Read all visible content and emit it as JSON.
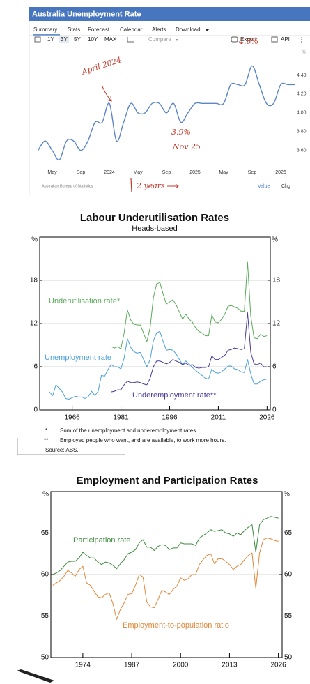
{
  "widget": {
    "tabs": [
      "Summary",
      "Stats",
      "Forecast",
      "Calendar",
      "Alerts",
      "Download"
    ],
    "ranges": [
      "1Y",
      "3Y",
      "5Y",
      "10Y",
      "MAX"
    ],
    "compare": "Compare",
    "actions": [
      "Export",
      "API"
    ],
    "footer": [
      "Value",
      "Chg"
    ]
  },
  "chart_data": [
    {
      "type": "line",
      "title": "Australia Unemployment Rate",
      "source": "Australian Bureau of Statistics",
      "ylabel": "%",
      "color": "#5b86c5",
      "grid": false,
      "categories": [
        null,
        null,
        "May",
        null,
        null,
        null,
        "Sep",
        null,
        null,
        null,
        "2024",
        null,
        null,
        null,
        "May",
        null,
        null,
        null,
        "Sep",
        null,
        null,
        null,
        "2025",
        null,
        null,
        null,
        "May",
        null,
        null,
        null,
        "Sep",
        null,
        null,
        null,
        "2026",
        null,
        null
      ],
      "values": [
        3.6,
        3.7,
        3.6,
        3.5,
        3.7,
        3.7,
        3.6,
        3.7,
        3.9,
        3.9,
        4.1,
        3.7,
        3.9,
        4.1,
        4.0,
        4.0,
        4.1,
        4.1,
        4.0,
        4.1,
        3.9,
        4.0,
        4.1,
        4.1,
        4.1,
        4.1,
        4.1,
        4.3,
        4.3,
        4.3,
        4.5,
        4.3,
        4.1,
        4.1,
        4.3,
        4.3,
        4.3
      ],
      "ylim": [
        3.42,
        4.57
      ],
      "yticks": [
        {
          "value": 3.6,
          "label": "3.60"
        },
        {
          "value": 3.8,
          "label": "3.80"
        },
        {
          "value": 4.0,
          "label": "4.00"
        },
        {
          "value": 4.2,
          "label": "4.20"
        },
        {
          "value": 4.4,
          "label": "4.40"
        }
      ],
      "annotations": [
        "April 2024",
        "3.9%",
        "Nov 25",
        "4.5%",
        "2 years"
      ]
    },
    {
      "type": "line",
      "title": "Labour Underutilisation Rates",
      "subtitle": "Heads-based",
      "ylabel": "%",
      "grid": true,
      "x": [
        1959,
        1960,
        1961,
        1962,
        1963,
        1964,
        1965,
        1966,
        1967,
        1968,
        1969,
        1970,
        1971,
        1972,
        1973,
        1974,
        1975,
        1976,
        1977,
        1978,
        1979,
        1980,
        1981,
        1982,
        1983,
        1984,
        1985,
        1986,
        1987,
        1988,
        1989,
        1990,
        1991,
        1992,
        1993,
        1994,
        1995,
        1996,
        1997,
        1998,
        1999,
        2000,
        2001,
        2002,
        2003,
        2004,
        2005,
        2006,
        2007,
        2008,
        2009,
        2010,
        2011,
        2012,
        2013,
        2014,
        2015,
        2016,
        2017,
        2018,
        2019,
        2020,
        2021,
        2022,
        2023,
        2024,
        2025,
        2026
      ],
      "series": [
        {
          "name": "Underutilisation rate*",
          "color": "#5aaa5a",
          "values": [
            null,
            null,
            null,
            null,
            null,
            null,
            null,
            null,
            null,
            null,
            null,
            null,
            null,
            null,
            null,
            null,
            null,
            null,
            null,
            8.8,
            8.6,
            8.8,
            8.5,
            10.7,
            13.9,
            12.5,
            11.9,
            11.8,
            11.8,
            10.6,
            9.5,
            11.4,
            15.6,
            17.5,
            17.7,
            16.1,
            14.7,
            15.0,
            15.3,
            14.6,
            13.6,
            12.6,
            13.3,
            12.6,
            12.2,
            11.4,
            10.9,
            10.7,
            10.3,
            10.3,
            13.2,
            12.2,
            12.1,
            12.6,
            13.3,
            14.4,
            14.5,
            14.3,
            14.1,
            13.7,
            13.7,
            20.5,
            13.0,
            10.0,
            9.9,
            10.5,
            10.2,
            10.3
          ]
        },
        {
          "name": "Unemployment rate",
          "color": "#4aa0d8",
          "values": [
            2.5,
            2.0,
            3.5,
            3.0,
            2.5,
            1.6,
            1.5,
            1.7,
            1.9,
            1.8,
            1.8,
            1.6,
            1.9,
            2.6,
            2.0,
            2.6,
            4.8,
            4.7,
            5.6,
            6.3,
            6.0,
            6.0,
            5.7,
            7.2,
            9.9,
            8.7,
            8.1,
            7.9,
            8.0,
            7.0,
            6.0,
            7.0,
            9.6,
            10.7,
            10.9,
            9.5,
            8.3,
            8.4,
            8.3,
            7.8,
            7.0,
            6.3,
            6.8,
            6.4,
            5.9,
            5.5,
            5.1,
            4.8,
            4.4,
            4.3,
            5.7,
            5.2,
            5.1,
            5.3,
            5.7,
            6.1,
            6.1,
            5.7,
            5.6,
            5.3,
            5.2,
            7.0,
            5.0,
            3.6,
            3.6,
            4.0,
            4.2,
            4.3
          ]
        },
        {
          "name": "Underemployment rate**",
          "color": "#4a3a9c",
          "values": [
            null,
            null,
            null,
            null,
            null,
            null,
            null,
            null,
            null,
            null,
            null,
            null,
            null,
            null,
            null,
            null,
            null,
            null,
            null,
            2.5,
            2.6,
            2.8,
            2.8,
            3.5,
            4.0,
            3.8,
            3.8,
            3.9,
            3.8,
            3.6,
            3.5,
            4.4,
            6.0,
            6.8,
            6.8,
            6.6,
            6.4,
            6.6,
            7.0,
            6.8,
            6.6,
            6.3,
            6.5,
            6.2,
            6.3,
            5.9,
            5.8,
            5.9,
            5.9,
            6.0,
            7.5,
            7.0,
            7.0,
            7.3,
            7.6,
            8.3,
            8.4,
            8.6,
            8.5,
            8.4,
            8.5,
            13.5,
            8.0,
            6.4,
            6.3,
            6.5,
            6.0,
            6.0
          ]
        }
      ],
      "xlim": [
        1956,
        2027
      ],
      "xticks": [
        1966,
        1981,
        1996,
        2011,
        2026
      ],
      "ylim": [
        0,
        24
      ],
      "yticks": [
        0,
        6,
        12,
        18
      ],
      "notes": [
        {
          "mark": "*",
          "text": "Sum of the unemployment and underemployment rates."
        },
        {
          "mark": "**",
          "text": "Employed people who want, and are available, to work more hours."
        }
      ],
      "source": "Source: ABS."
    },
    {
      "type": "line",
      "title": "Employment and Participation Rates",
      "ylabel": "%",
      "grid": true,
      "x": [
        1966,
        1967,
        1968,
        1969,
        1970,
        1971,
        1972,
        1973,
        1974,
        1975,
        1976,
        1977,
        1978,
        1979,
        1980,
        1981,
        1982,
        1983,
        1984,
        1985,
        1986,
        1987,
        1988,
        1989,
        1990,
        1991,
        1992,
        1993,
        1994,
        1995,
        1996,
        1997,
        1998,
        1999,
        2000,
        2001,
        2002,
        2003,
        2004,
        2005,
        2006,
        2007,
        2008,
        2009,
        2010,
        2011,
        2012,
        2013,
        2014,
        2015,
        2016,
        2017,
        2018,
        2019,
        2020,
        2021,
        2022,
        2023,
        2024,
        2025,
        2026
      ],
      "series": [
        {
          "name": "Participation rate",
          "color": "#3d8b3d",
          "values": [
            60.0,
            60.2,
            60.5,
            61.0,
            61.5,
            61.6,
            61.6,
            62.0,
            62.7,
            62.3,
            62.0,
            62.0,
            61.5,
            61.2,
            61.5,
            61.4,
            61.1,
            60.7,
            61.3,
            61.8,
            62.5,
            62.7,
            63.0,
            63.8,
            64.2,
            63.3,
            63.3,
            62.9,
            63.4,
            63.6,
            63.5,
            63.0,
            63.2,
            63.2,
            63.8,
            63.7,
            63.7,
            63.7,
            63.5,
            64.4,
            64.7,
            65.0,
            65.4,
            65.2,
            65.3,
            65.4,
            65.0,
            64.9,
            64.6,
            65.0,
            64.8,
            65.3,
            65.7,
            66.0,
            62.7,
            66.0,
            66.6,
            66.8,
            67.0,
            66.9,
            66.8
          ]
        },
        {
          "name": "Employment-to-population ratio",
          "color": "#e0873a",
          "values": [
            58.7,
            59.0,
            59.3,
            59.8,
            60.5,
            60.2,
            59.8,
            60.6,
            61.0,
            59.0,
            58.7,
            58.0,
            57.3,
            57.2,
            57.6,
            57.8,
            56.5,
            54.6,
            55.8,
            56.6,
            57.6,
            57.7,
            58.7,
            60.0,
            59.7,
            56.7,
            56.1,
            56.0,
            57.0,
            58.1,
            57.9,
            57.6,
            58.2,
            58.6,
            59.6,
            59.3,
            59.5,
            60.0,
            60.0,
            61.2,
            61.8,
            62.3,
            62.5,
            61.3,
            61.9,
            61.9,
            61.6,
            61.2,
            60.6,
            61.0,
            61.2,
            61.8,
            62.3,
            62.6,
            58.3,
            62.6,
            64.2,
            64.4,
            64.3,
            64.1,
            64.0
          ]
        }
      ],
      "xlim": [
        1965.5,
        2027
      ],
      "xticks": [
        1974,
        1987,
        2000,
        2013,
        2026
      ],
      "ylim": [
        50,
        70
      ],
      "yticks": [
        50,
        55,
        60,
        65
      ]
    }
  ]
}
